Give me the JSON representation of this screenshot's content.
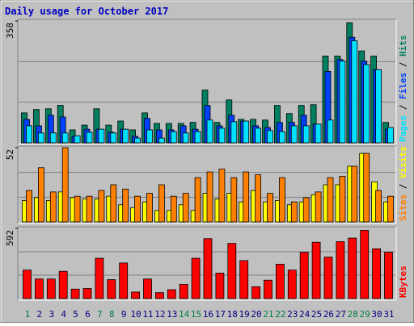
{
  "chart_data": [
    {
      "type": "bar",
      "title": "Daily usage for October 2017",
      "ylim": [
        0,
        358
      ],
      "yticks": [
        358
      ],
      "legend_separator": " / ",
      "series": [
        {
          "name": "Hits",
          "color": "#008060",
          "values": [
            88,
            98,
            100,
            110,
            38,
            52,
            100,
            52,
            64,
            38,
            88,
            57,
            57,
            57,
            60,
            155,
            60,
            126,
            69,
            69,
            67,
            110,
            86,
            110,
            112,
            255,
            255,
            353,
            270,
            255,
            60
          ]
        },
        {
          "name": "Files",
          "color": "#0040ff",
          "values": [
            69,
            50,
            81,
            76,
            19,
            40,
            40,
            31,
            40,
            19,
            72,
            38,
            38,
            50,
            40,
            110,
            50,
            81,
            64,
            50,
            45,
            60,
            60,
            81,
            55,
            210,
            245,
            310,
            240,
            215,
            40
          ]
        },
        {
          "name": "Pages",
          "color": "#00e0ff",
          "values": [
            50,
            29,
            29,
            29,
            21,
            31,
            40,
            29,
            40,
            14,
            38,
            14,
            33,
            29,
            33,
            67,
            43,
            62,
            64,
            43,
            36,
            33,
            50,
            50,
            55,
            67,
            240,
            300,
            230,
            215,
            45
          ]
        }
      ]
    },
    {
      "type": "bar",
      "ylim": [
        0,
        52
      ],
      "yticks": [
        52
      ],
      "legend_separator": " / ",
      "series": [
        {
          "name": "Visits",
          "color": "#ffff00",
          "values": [
            15,
            17,
            15,
            21,
            17,
            16,
            16,
            18,
            12,
            10,
            14,
            8,
            8,
            12,
            8,
            20,
            16,
            20,
            14,
            22,
            14,
            15,
            12,
            14,
            19,
            26,
            26,
            39,
            48,
            28,
            14
          ]
        },
        {
          "name": "Sites",
          "color": "#ff8000",
          "values": [
            22,
            38,
            21,
            52,
            18,
            18,
            22,
            26,
            23,
            18,
            20,
            26,
            18,
            20,
            31,
            35,
            37,
            31,
            35,
            33,
            20,
            31,
            14,
            17,
            21,
            31,
            32,
            39,
            48,
            22,
            18
          ]
        }
      ]
    },
    {
      "type": "bar",
      "ylim": [
        0,
        592
      ],
      "yticks": [
        592
      ],
      "categories": [
        "1",
        "2",
        "3",
        "4",
        "5",
        "6",
        "7",
        "8",
        "9",
        "10",
        "11",
        "12",
        "13",
        "14",
        "15",
        "16",
        "17",
        "18",
        "19",
        "20",
        "21",
        "22",
        "23",
        "24",
        "25",
        "26",
        "27",
        "28",
        "29",
        "30",
        "31"
      ],
      "label_colors": [
        "#008040",
        "#000080",
        "#000080",
        "#000080",
        "#000080",
        "#000080",
        "#008040",
        "#008040",
        "#000080",
        "#000080",
        "#000080",
        "#000080",
        "#000080",
        "#008040",
        "#008040",
        "#000080",
        "#000080",
        "#000080",
        "#000080",
        "#000080",
        "#008040",
        "#008040",
        "#000080",
        "#000080",
        "#000080",
        "#000080",
        "#000080",
        "#008040",
        "#008040",
        "#000080",
        "#000080"
      ],
      "series": [
        {
          "name": "KBytes",
          "color": "#ff0000",
          "values": [
            240,
            165,
            165,
            230,
            80,
            85,
            340,
            160,
            300,
            55,
            165,
            50,
            75,
            120,
            340,
            505,
            215,
            465,
            320,
            100,
            155,
            290,
            240,
            390,
            475,
            350,
            480,
            510,
            575,
            420,
            390
          ]
        }
      ]
    }
  ]
}
